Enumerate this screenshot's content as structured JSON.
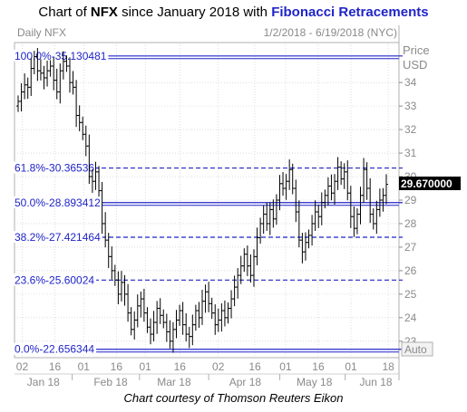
{
  "title": {
    "prefix": "Chart of ",
    "ticker": "NFX",
    "middle": " since January 2018 with ",
    "highlight": "Fibonacci Retracements"
  },
  "credit": "Chart courtesy of Thomson Reuters Eikon",
  "colors": {
    "fib_line": "#1f24c8",
    "bars": "#000000",
    "grid": "#c8c8c8"
  },
  "chart_data": {
    "type": "bar",
    "panel_label": "Daily NFX",
    "date_range": "1/2/2018 - 6/19/2018 (NYC)",
    "ylabel": "Price",
    "yunit": "USD",
    "y_ticks": [
      "34",
      "33",
      "32",
      "31",
      "30",
      "29",
      "28",
      "27",
      "26",
      "25",
      "24",
      "23"
    ],
    "ylim": [
      22.3,
      35.7
    ],
    "last_price": "29.670000",
    "auto_label": "Auto",
    "x_day_ticks": [
      "02",
      "16",
      "01",
      "16",
      "01",
      "16",
      "02",
      "16",
      "01",
      "16",
      "01",
      "18"
    ],
    "x_month_labels": [
      "Jan 18",
      "Feb 18",
      "Mar 18",
      "Apr 18",
      "May 18",
      "Jun 18"
    ],
    "fib_levels": [
      {
        "label": "100.0%-35.130481",
        "pct": 100.0,
        "price": 35.130481,
        "style": "solid"
      },
      {
        "label": "61.8%-30.36536",
        "pct": 61.8,
        "price": 30.36536,
        "style": "dashed"
      },
      {
        "label": "50.0%-28.893412",
        "pct": 50.0,
        "price": 28.893412,
        "style": "solid"
      },
      {
        "label": "38.2%-27.421464",
        "pct": 38.2,
        "price": 27.421464,
        "style": "dashed"
      },
      {
        "label": "23.6%-25.60024",
        "pct": 23.6,
        "price": 25.60024,
        "style": "dashed"
      },
      {
        "label": "0.0%-22.656344",
        "pct": 0.0,
        "price": 22.656344,
        "style": "solid"
      }
    ],
    "ohlc_close": [
      33.2,
      33.6,
      33.9,
      33.8,
      34.6,
      35.1,
      34.5,
      34.4,
      34.2,
      34.5,
      34.7,
      34.1,
      33.6,
      34.5,
      34.9,
      34.7,
      34.0,
      33.8,
      32.6,
      32.3,
      31.8,
      31.3,
      30.0,
      29.8,
      30.2,
      29.4,
      28.0,
      27.3,
      26.6,
      26.0,
      25.6,
      25.0,
      25.5,
      25.0,
      24.2,
      23.5,
      23.9,
      24.5,
      24.8,
      24.2,
      23.6,
      23.3,
      23.8,
      24.4,
      24.1,
      23.8,
      23.4,
      23.0,
      23.5,
      23.9,
      24.3,
      23.7,
      23.3,
      23.2,
      23.7,
      24.3,
      24.0,
      24.7,
      25.1,
      24.6,
      24.2,
      23.7,
      23.9,
      24.3,
      24.0,
      24.4,
      24.8,
      25.3,
      25.8,
      26.2,
      26.7,
      26.2,
      25.8,
      26.6,
      27.4,
      28.0,
      28.4,
      28.0,
      28.6,
      28.2,
      29.0,
      29.7,
      29.5,
      29.8,
      30.3,
      29.5,
      28.5,
      27.3,
      26.8,
      27.2,
      27.5,
      28.0,
      28.5,
      28.3,
      28.9,
      29.2,
      29.6,
      29.3,
      29.8,
      30.4,
      29.9,
      30.2,
      29.3,
      28.3,
      27.8,
      28.4,
      29.2,
      30.3,
      29.5,
      28.4,
      28.0,
      28.6,
      29.0,
      29.2,
      29.67
    ]
  }
}
